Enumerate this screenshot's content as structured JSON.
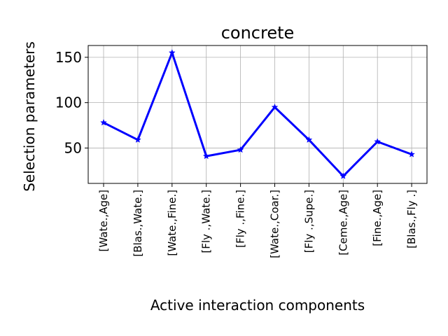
{
  "chart_data": {
    "type": "line",
    "title": "concrete",
    "xlabel": "Active interaction components",
    "ylabel": "Selection parameters",
    "categories": [
      "[Wate.,Age]",
      "[Blas.,Wate.]",
      "[Wate.,Fine.]",
      "[Fly .,Wate.]",
      "[Fly .,Fine.]",
      "[Wate.,Coar.]",
      "[Fly .,Supe.]",
      "[Ceme.,Age]",
      "[Fine.,Age]",
      "[Blas.,Fly .]"
    ],
    "series": [
      {
        "name": "concrete",
        "values": [
          78,
          59,
          155,
          41,
          48,
          95,
          59,
          19,
          57,
          43
        ],
        "color": "#0000ff",
        "marker": "star"
      }
    ],
    "yticks": [
      50,
      100,
      150
    ],
    "ylim": [
      11,
      163
    ],
    "grid": true
  }
}
